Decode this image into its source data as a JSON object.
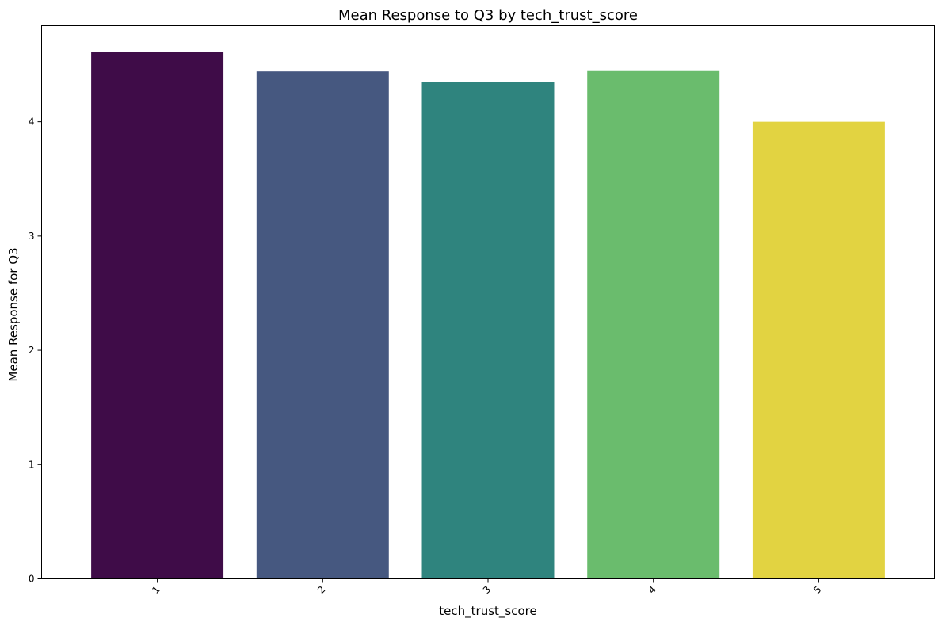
{
  "chart_data": {
    "type": "bar",
    "title": "Mean Response to Q3 by tech_trust_score",
    "xlabel": "tech_trust_score",
    "ylabel": "Mean Response for Q3",
    "categories": [
      "1",
      "2",
      "3",
      "4",
      "5"
    ],
    "values": [
      4.61,
      4.44,
      4.35,
      4.45,
      4.0
    ],
    "colors": [
      "#3f0c48",
      "#465880",
      "#2f847e",
      "#6abc6d",
      "#e2d341"
    ],
    "ylim": [
      0,
      4.84
    ],
    "yticks": [
      0,
      1,
      2,
      3,
      4
    ],
    "x_tick_rotation": "45 degrees",
    "grid": false,
    "legend": "none"
  }
}
